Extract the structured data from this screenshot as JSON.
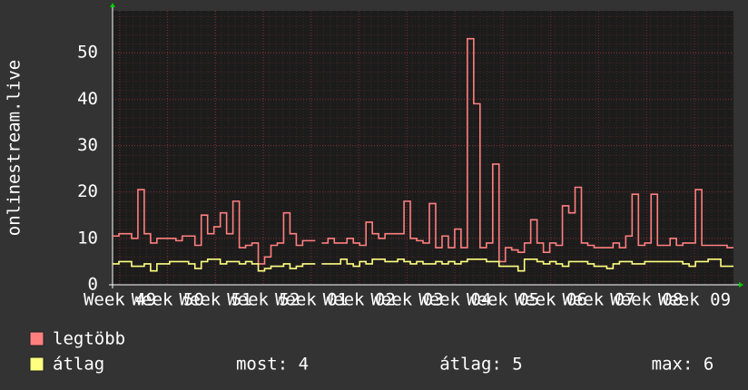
{
  "chart_data": {
    "type": "line",
    "y_label": "onlinestream.live",
    "x_labels": [
      "Week 49",
      "Week 50",
      "Week 51",
      "Week 52",
      "Week 01",
      "Week 02",
      "Week 03",
      "Week 04",
      "Week 05",
      "Week 06",
      "Week 07",
      "Week 08",
      "Week 09"
    ],
    "ylim": [
      0,
      59
    ],
    "yticks": [
      0,
      10,
      20,
      30,
      40,
      50
    ],
    "grid": true,
    "series": [
      {
        "name": "legtöbb",
        "color": "#ff7f7f",
        "values": [
          10.5,
          11,
          11,
          10,
          20.5,
          11,
          9,
          10,
          10,
          10,
          9.5,
          10.5,
          10.5,
          8.5,
          15,
          11,
          12.5,
          15.5,
          11,
          18,
          8,
          8.5,
          9,
          4.5,
          6,
          8.5,
          9,
          15.5,
          11,
          8.5,
          9.5,
          9.5,
          null,
          9,
          10,
          9,
          9,
          10,
          9,
          8.5,
          13.5,
          11,
          10,
          11,
          11,
          11,
          18,
          10,
          9.5,
          9,
          17.5,
          8,
          10.5,
          8,
          12,
          8,
          53,
          39,
          8,
          9,
          26,
          5,
          8,
          7.5,
          7,
          9,
          14,
          9,
          7,
          9,
          8.5,
          17,
          15.5,
          21,
          9,
          8.5,
          8,
          8,
          8,
          9,
          8,
          10.5,
          19.5,
          8.5,
          9,
          19.5,
          8.5,
          8.5,
          10,
          8.5,
          9,
          9,
          20.5,
          8.5,
          8.5,
          8.5,
          8.5,
          8
        ]
      },
      {
        "name": "átlag",
        "color": "#ffff80",
        "values": [
          4.5,
          5,
          5,
          4,
          4,
          4.5,
          3,
          4.5,
          4.5,
          5,
          5,
          5,
          4.5,
          3.5,
          5,
          5.5,
          5.5,
          4.5,
          5,
          5,
          4.5,
          5,
          4.5,
          3,
          3.5,
          4,
          4,
          4.5,
          3.5,
          4,
          4.5,
          4.5,
          null,
          4.5,
          4.5,
          4.5,
          5.5,
          4.5,
          4,
          5,
          4.5,
          5.5,
          5.5,
          5,
          5,
          5.5,
          5,
          4.5,
          5,
          4.5,
          4.5,
          5,
          4.5,
          5,
          4.5,
          5,
          5.5,
          5.5,
          5.5,
          5,
          5,
          4,
          4,
          4,
          3,
          5.5,
          5.5,
          5,
          4.5,
          5,
          4.5,
          4,
          5,
          5,
          5,
          4.5,
          4,
          4,
          3.5,
          4.5,
          5,
          5,
          4.5,
          4.5,
          5,
          5,
          5,
          5,
          5,
          5,
          4.5,
          4,
          5,
          5,
          5.5,
          5.5,
          4,
          4
        ]
      }
    ],
    "stats": [
      "most: 4",
      "átlag: 5",
      "max: 6"
    ]
  }
}
